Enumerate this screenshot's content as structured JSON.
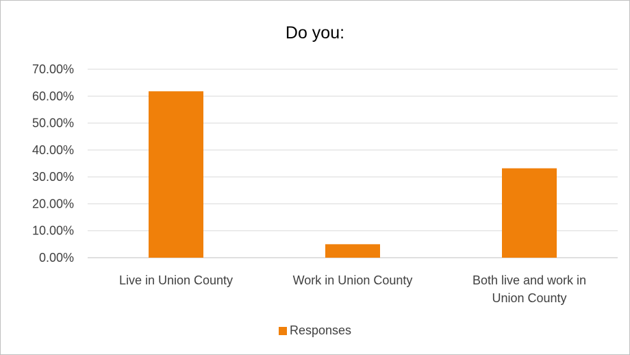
{
  "chart_data": {
    "type": "bar",
    "title": "Do you:",
    "categories": [
      "Live in Union County",
      "Work in Union County",
      "Both live and work in Union County"
    ],
    "category_lines": [
      [
        "Live in Union County"
      ],
      [
        "Work in Union County"
      ],
      [
        "Both live and work in",
        "Union County"
      ]
    ],
    "series": [
      {
        "name": "Responses",
        "values": [
          61.8,
          5.0,
          33.2
        ],
        "color": "#f0800a"
      }
    ],
    "ylim": [
      0,
      70
    ],
    "yticks": [
      0,
      10,
      20,
      30,
      40,
      50,
      60,
      70
    ],
    "ytick_labels": [
      "0.00%",
      "10.00%",
      "20.00%",
      "30.00%",
      "40.00%",
      "50.00%",
      "60.00%",
      "70.00%"
    ],
    "grid": true,
    "legend_position": "bottom"
  }
}
